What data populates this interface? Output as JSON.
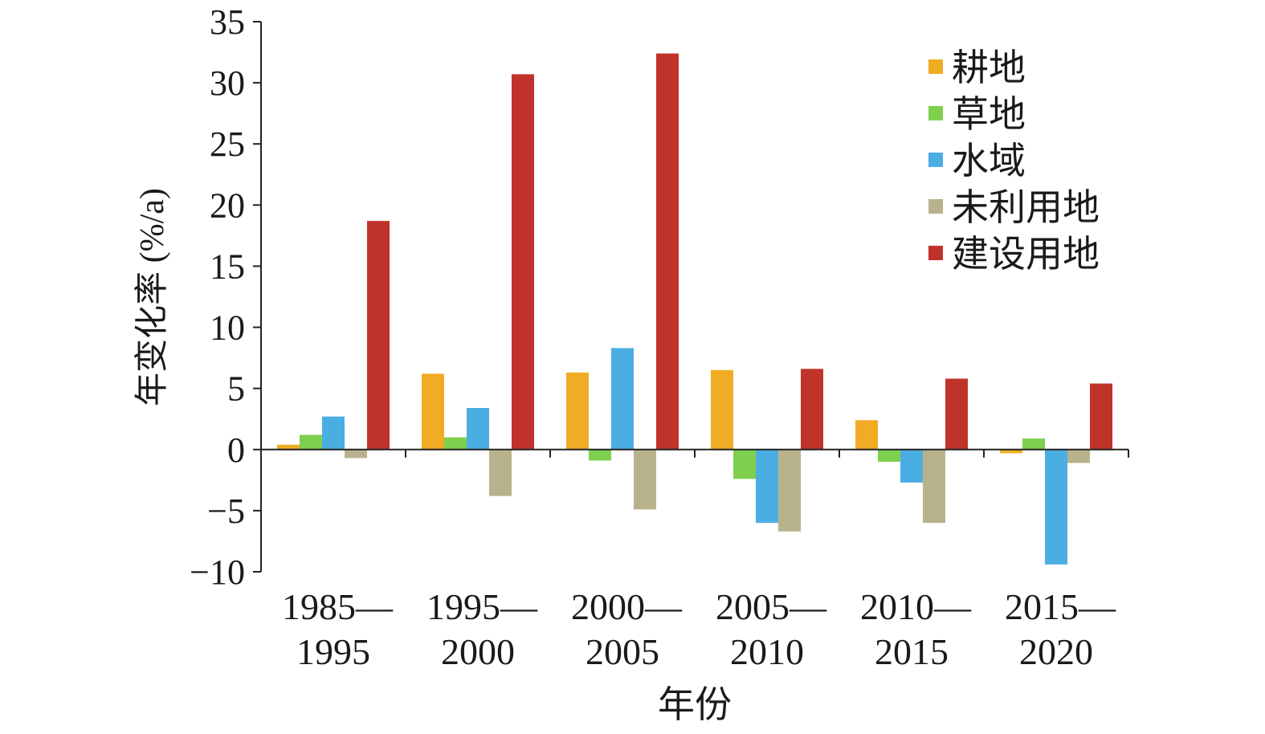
{
  "chart_data": {
    "type": "bar",
    "title": "",
    "xlabel": "年份",
    "ylabel": "年变化率 (%/a)",
    "ylim": [
      -10,
      35
    ],
    "yticks": [
      -10,
      -5,
      0,
      5,
      10,
      15,
      20,
      25,
      30,
      35
    ],
    "ytick_labels": [
      "−10",
      "−5",
      "0",
      "5",
      "10",
      "15",
      "20",
      "25",
      "30",
      "35"
    ],
    "categories": [
      [
        "1985—",
        "1995"
      ],
      [
        "1995—",
        "2000"
      ],
      [
        "2000—",
        "2005"
      ],
      [
        "2005—",
        "2010"
      ],
      [
        "2010—",
        "2015"
      ],
      [
        "2015—",
        "2020"
      ]
    ],
    "legend_position": "top-right",
    "grid": false,
    "series": [
      {
        "name": "耕地",
        "color": "#F0AC24",
        "values": [
          0.4,
          6.2,
          6.3,
          6.5,
          2.4,
          -0.3
        ]
      },
      {
        "name": "草地",
        "color": "#7FCF4F",
        "values": [
          1.2,
          1.0,
          -0.9,
          -2.4,
          -1.0,
          0.9
        ]
      },
      {
        "name": "水域",
        "color": "#4BAEE3",
        "values": [
          2.7,
          3.4,
          8.3,
          -6.0,
          -2.7,
          -9.4
        ]
      },
      {
        "name": "未利用地",
        "color": "#B8B28C",
        "values": [
          -0.7,
          -3.8,
          -4.9,
          -6.7,
          -6.0,
          -1.1
        ]
      },
      {
        "name": "建设用地",
        "color": "#C0332B",
        "values": [
          18.7,
          30.7,
          32.4,
          6.6,
          5.8,
          5.4
        ]
      }
    ]
  }
}
